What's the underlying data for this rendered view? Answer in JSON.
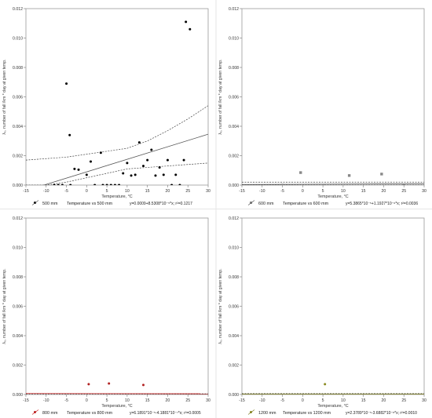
{
  "chart_data": [
    {
      "type": "scatter",
      "xlabel": "Temperature, °C",
      "ylabel": "λ₀, number of fall /km * day at given temp.",
      "xlim": [
        -15,
        30
      ],
      "ylim": [
        0,
        0.012
      ],
      "xticks": [
        -15,
        -10,
        -5,
        0,
        5,
        10,
        15,
        20,
        25,
        30
      ],
      "yticks": [
        0.0,
        0.002,
        0.004,
        0.006,
        0.008,
        0.01,
        0.012
      ],
      "legend": "500 mm",
      "fit_label": "Temperature vs 500 mm",
      "equation": "y=0.0009+8.5308*10⁻⁵*x; r²=0.1217",
      "marker": "circle",
      "marker_color": "#000000",
      "fit": {
        "intercept": 0.0009,
        "slope": 8.5308e-05
      },
      "band_lower": [
        [
          -15,
          0.0
        ],
        [
          -10,
          0.0
        ],
        [
          -5,
          0.0002
        ],
        [
          0,
          0.0005
        ],
        [
          5,
          0.0008
        ],
        [
          10,
          0.0011
        ],
        [
          15,
          0.0012
        ],
        [
          20,
          0.0013
        ],
        [
          25,
          0.0014
        ],
        [
          30,
          0.0015
        ]
      ],
      "band_upper": [
        [
          -15,
          0.0017
        ],
        [
          -10,
          0.0018
        ],
        [
          -5,
          0.0019
        ],
        [
          0,
          0.0021
        ],
        [
          5,
          0.0023
        ],
        [
          10,
          0.0025
        ],
        [
          15,
          0.003
        ],
        [
          20,
          0.0037
        ],
        [
          25,
          0.0045
        ],
        [
          30,
          0.0054
        ]
      ],
      "points": [
        [
          -8,
          0
        ],
        [
          -7,
          0
        ],
        [
          -6,
          0
        ],
        [
          -5,
          0.0069
        ],
        [
          -4,
          0
        ],
        [
          -3,
          0.0011
        ],
        [
          -2,
          0.00105
        ],
        [
          -4.2,
          0.0034
        ],
        [
          0,
          0.0007
        ],
        [
          1,
          0.0016
        ],
        [
          2,
          0
        ],
        [
          3.5,
          0.0022
        ],
        [
          4,
          0
        ],
        [
          5,
          0
        ],
        [
          6,
          0
        ],
        [
          7,
          0
        ],
        [
          8,
          0
        ],
        [
          9,
          0.0008
        ],
        [
          10,
          0.0015
        ],
        [
          11,
          0.00065
        ],
        [
          12,
          0.0007
        ],
        [
          13,
          0.0029
        ],
        [
          14,
          0.0013
        ],
        [
          15,
          0.0017
        ],
        [
          16,
          0.0024
        ],
        [
          17,
          0.00065
        ],
        [
          18,
          0.0012
        ],
        [
          19,
          0.0007
        ],
        [
          20,
          0.0017
        ],
        [
          21,
          0
        ],
        [
          22,
          0.0007
        ],
        [
          23,
          0
        ],
        [
          24,
          0.0017
        ],
        [
          24.5,
          0.0111
        ],
        [
          25.5,
          0.0106
        ]
      ]
    },
    {
      "type": "scatter",
      "xlabel": "Temperature, °C",
      "ylabel": "λ₀, number of fall /km * day at given temp.",
      "xlim": [
        -15,
        30
      ],
      "ylim": [
        0,
        0.012
      ],
      "xticks": [
        -15,
        -10,
        -5,
        0,
        5,
        10,
        15,
        20,
        25,
        30
      ],
      "yticks": [
        0.0,
        0.002,
        0.004,
        0.006,
        0.008,
        0.01,
        0.012
      ],
      "legend": "600 mm",
      "fit_label": "Temperature vs 600 mm",
      "equation": "y=5.3865*10⁻⁵+1.1927*10⁻⁶*x; r²=0.0036",
      "marker": "square",
      "marker_color": "#888888",
      "fit": {
        "intercept": 5.3865e-05,
        "slope": 1.1927e-06
      },
      "band_lower": [
        [
          -15,
          0.0
        ],
        [
          30,
          0.0
        ]
      ],
      "band_upper": [
        [
          -15,
          0.0002
        ],
        [
          30,
          0.0002
        ]
      ],
      "points": [
        [
          -0.5,
          0.00085
        ],
        [
          11.5,
          0.00065
        ],
        [
          19.5,
          0.00075
        ],
        [
          5,
          0
        ],
        [
          -5,
          0
        ],
        [
          25,
          0
        ]
      ]
    },
    {
      "type": "scatter",
      "xlabel": "Temperature, °C",
      "ylabel": "λ₀, number of fall /km * day at given temp.",
      "xlim": [
        -15,
        30
      ],
      "ylim": [
        0,
        0.012
      ],
      "xticks": [
        -15,
        -10,
        -5,
        0,
        5,
        10,
        15,
        20,
        25,
        30
      ],
      "yticks": [
        0.0,
        0.002,
        0.004,
        0.006,
        0.008,
        0.01,
        0.012
      ],
      "legend": "800 mm",
      "fit_label": "Temperature vs 800 mm",
      "equation": "y=6.1891*10⁻⁵-4.1881*10⁻⁷*x; r²=0.0005",
      "marker": "circle",
      "marker_color": "#b22222",
      "fit": {
        "intercept": 6.1891e-05,
        "slope": -4.1881e-07
      },
      "band_lower": [
        [
          -15,
          0.0
        ],
        [
          30,
          0.0
        ]
      ],
      "band_upper": [
        [
          -15,
          5e-05
        ],
        [
          30,
          5e-05
        ]
      ],
      "points": [
        [
          0.5,
          0.0007
        ],
        [
          5.5,
          0.00075
        ],
        [
          14,
          0.00065
        ]
      ]
    },
    {
      "type": "scatter",
      "xlabel": "Temperature, °C",
      "ylabel": "λ₀, number of fall /km * day at given temp.",
      "xlim": [
        -15,
        30
      ],
      "ylim": [
        0,
        0.012
      ],
      "xticks": [
        -15,
        -10,
        -5,
        0,
        5,
        10,
        15,
        20,
        25,
        30
      ],
      "yticks": [
        0.0,
        0.002,
        0.004,
        0.006,
        0.008,
        0.01,
        0.012
      ],
      "legend": "1200 mm",
      "fit_label": "Temperature vs 1200 mm",
      "equation": "y=2.3789*10⁻⁵-3.6882*10⁻⁸*x; r²=0.0010",
      "marker": "circle",
      "marker_color": "#8a8a20",
      "fit": {
        "intercept": 2.3789e-05,
        "slope": -3.6882e-08
      },
      "band_lower": [
        [
          -15,
          0.0
        ],
        [
          30,
          0.0
        ]
      ],
      "band_upper": [
        [
          -15,
          6e-05
        ],
        [
          30,
          6e-05
        ]
      ],
      "points": [
        [
          5.5,
          0.0007
        ]
      ]
    }
  ]
}
